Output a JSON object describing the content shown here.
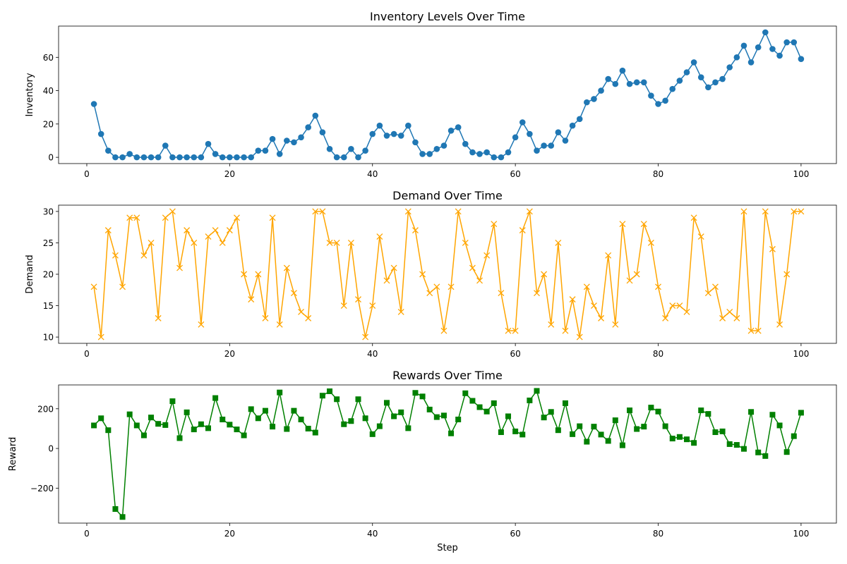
{
  "chart_data": [
    {
      "type": "line",
      "title": "Inventory Levels Over Time",
      "xlabel": "",
      "ylabel": "Inventory",
      "xlim": [
        -3.95,
        104.95
      ],
      "ylim": [
        -3.75,
        78.75
      ],
      "xticks": [
        0,
        20,
        40,
        60,
        80,
        100
      ],
      "yticks": [
        0,
        20,
        40,
        60
      ],
      "grid": false,
      "color": "#1f77b4",
      "marker": "circle",
      "x": [
        1,
        2,
        3,
        4,
        5,
        6,
        7,
        8,
        9,
        10,
        11,
        12,
        13,
        14,
        15,
        16,
        17,
        18,
        19,
        20,
        21,
        22,
        23,
        24,
        25,
        26,
        27,
        28,
        29,
        30,
        31,
        32,
        33,
        34,
        35,
        36,
        37,
        38,
        39,
        40,
        41,
        42,
        43,
        44,
        45,
        46,
        47,
        48,
        49,
        50,
        51,
        52,
        53,
        54,
        55,
        56,
        57,
        58,
        59,
        60,
        61,
        62,
        63,
        64,
        65,
        66,
        67,
        68,
        69,
        70,
        71,
        72,
        73,
        74,
        75,
        76,
        77,
        78,
        79,
        80,
        81,
        82,
        83,
        84,
        85,
        86,
        87,
        88,
        89,
        90,
        91,
        92,
        93,
        94,
        95,
        96,
        97,
        98,
        99,
        100
      ],
      "values": [
        32,
        14,
        4,
        0,
        0,
        2,
        0,
        0,
        0,
        0,
        7,
        0,
        0,
        0,
        0,
        0,
        8,
        2,
        0,
        0,
        0,
        0,
        0,
        4,
        4,
        11,
        2,
        10,
        9,
        12,
        18,
        25,
        15,
        5,
        0,
        0,
        5,
        0,
        4,
        14,
        19,
        13,
        14,
        13,
        19,
        9,
        2,
        2,
        5,
        7,
        16,
        18,
        8,
        3,
        2,
        3,
        0,
        0,
        3,
        12,
        21,
        14,
        4,
        7,
        7,
        15,
        10,
        19,
        23,
        33,
        35,
        40,
        47,
        44,
        52,
        44,
        45,
        45,
        37,
        32,
        34,
        41,
        46,
        51,
        57,
        48,
        42,
        45,
        47,
        54,
        60,
        67,
        57,
        66,
        75,
        65,
        61,
        69,
        69,
        59
      ]
    },
    {
      "type": "line",
      "title": "Demand Over Time",
      "xlabel": "",
      "ylabel": "Demand",
      "xlim": [
        -3.95,
        104.95
      ],
      "ylim": [
        9,
        31
      ],
      "xticks": [
        0,
        20,
        40,
        60,
        80,
        100
      ],
      "yticks": [
        10,
        15,
        20,
        25,
        30
      ],
      "grid": false,
      "color": "#ffa500",
      "marker": "x",
      "x": [
        1,
        2,
        3,
        4,
        5,
        6,
        7,
        8,
        9,
        10,
        11,
        12,
        13,
        14,
        15,
        16,
        17,
        18,
        19,
        20,
        21,
        22,
        23,
        24,
        25,
        26,
        27,
        28,
        29,
        30,
        31,
        32,
        33,
        34,
        35,
        36,
        37,
        38,
        39,
        40,
        41,
        42,
        43,
        44,
        45,
        46,
        47,
        48,
        49,
        50,
        51,
        52,
        53,
        54,
        55,
        56,
        57,
        58,
        59,
        60,
        61,
        62,
        63,
        64,
        65,
        66,
        67,
        68,
        69,
        70,
        71,
        72,
        73,
        74,
        75,
        76,
        77,
        78,
        79,
        80,
        81,
        82,
        83,
        84,
        85,
        86,
        87,
        88,
        89,
        90,
        91,
        92,
        93,
        94,
        95,
        96,
        97,
        98,
        99,
        100
      ],
      "values": [
        18,
        10,
        27,
        23,
        18,
        29,
        29,
        23,
        25,
        13,
        29,
        30,
        21,
        27,
        25,
        12,
        26,
        27,
        25,
        27,
        29,
        20,
        16,
        20,
        13,
        29,
        12,
        21,
        17,
        14,
        13,
        30,
        30,
        25,
        25,
        15,
        25,
        16,
        10,
        15,
        26,
        19,
        21,
        14,
        30,
        27,
        20,
        17,
        18,
        11,
        18,
        30,
        25,
        21,
        19,
        23,
        28,
        17,
        11,
        11,
        27,
        30,
        17,
        20,
        12,
        25,
        11,
        16,
        10,
        18,
        15,
        13,
        23,
        12,
        28,
        19,
        20,
        28,
        25,
        18,
        13,
        15,
        15,
        14,
        29,
        26,
        17,
        18,
        13,
        14,
        13,
        30,
        11,
        11,
        30,
        24,
        12,
        20,
        30,
        30
      ]
    },
    {
      "type": "line",
      "title": "Rewards Over Time",
      "xlabel": "Step",
      "ylabel": "Reward",
      "xlim": [
        -3.95,
        104.95
      ],
      "ylim": [
        -376,
        320
      ],
      "xticks": [
        0,
        20,
        40,
        60,
        80,
        100
      ],
      "yticks": [
        -200,
        0,
        200
      ],
      "grid": false,
      "color": "#008000",
      "marker": "square",
      "x": [
        1,
        2,
        3,
        4,
        5,
        6,
        7,
        8,
        9,
        10,
        11,
        12,
        13,
        14,
        15,
        16,
        17,
        18,
        19,
        20,
        21,
        22,
        23,
        24,
        25,
        26,
        27,
        28,
        29,
        30,
        31,
        32,
        33,
        34,
        35,
        36,
        37,
        38,
        39,
        40,
        41,
        42,
        43,
        44,
        45,
        46,
        47,
        48,
        49,
        50,
        51,
        52,
        53,
        54,
        55,
        56,
        57,
        58,
        59,
        60,
        61,
        62,
        63,
        64,
        65,
        66,
        67,
        68,
        69,
        70,
        71,
        72,
        73,
        74,
        75,
        76,
        77,
        78,
        79,
        80,
        81,
        82,
        83,
        84,
        85,
        86,
        87,
        88,
        89,
        90,
        91,
        92,
        93,
        94,
        95,
        96,
        97,
        98,
        99,
        100
      ],
      "values": [
        116,
        152,
        92,
        -305,
        -345,
        172,
        116,
        66,
        156,
        124,
        118,
        238,
        52,
        182,
        96,
        122,
        102,
        254,
        146,
        120,
        96,
        66,
        198,
        152,
        190,
        110,
        282,
        98,
        190,
        146,
        100,
        80,
        266,
        288,
        248,
        122,
        138,
        248,
        152,
        72,
        112,
        230,
        162,
        182,
        102,
        280,
        262,
        196,
        158,
        166,
        76,
        146,
        278,
        240,
        208,
        186,
        228,
        82,
        162,
        86,
        70,
        242,
        290,
        156,
        184,
        92,
        228,
        72,
        112,
        34,
        110,
        70,
        38,
        142,
        16,
        192,
        98,
        110,
        206,
        186,
        112,
        50,
        58,
        46,
        28,
        192,
        174,
        82,
        86,
        22,
        18,
        -2,
        184,
        -20,
        -38,
        170,
        116,
        -18,
        62,
        180
      ]
    }
  ]
}
